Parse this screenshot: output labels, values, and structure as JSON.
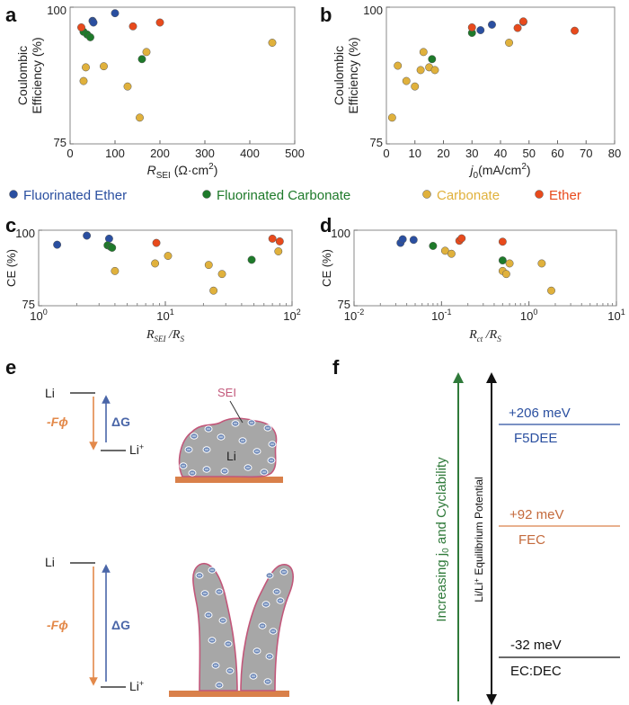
{
  "colors": {
    "fluorinated_ether": "#2a4fa0",
    "fluorinated_carbonate": "#1e7a2a",
    "carbonate": "#e0b13c",
    "ether": "#e84a1c",
    "electrode": "#d9804a",
    "lithium_fill": "#a7a7a7",
    "sei_outline": "#c2577a",
    "ion_fill": "#6d88b8",
    "neg_F_phi": "#e3894a",
    "delta_G": "#4a66a8",
    "green_arrow": "#2f7a3a"
  },
  "legend": [
    {
      "label": "Fluorinated Ether",
      "color_key": "fluorinated_ether"
    },
    {
      "label": "Fluorinated Carbonate",
      "color_key": "fluorinated_carbonate"
    },
    {
      "label": "Carbonate",
      "color_key": "carbonate"
    },
    {
      "label": "Ether",
      "color_key": "ether"
    }
  ],
  "chart_data": [
    {
      "panel": "a",
      "type": "scatter",
      "xlabel": "R",
      "xlabel_sub": "SEI",
      "xlabel_unit": " (Ω·cm",
      "xlabel_unit_end": ")",
      "xlabel_sup": "2",
      "ylabel_lines": [
        "Coulombic",
        "Efficiency (%)"
      ],
      "xlim": [
        0,
        500
      ],
      "ylim": [
        75,
        100
      ],
      "xticks": [
        0,
        100,
        200,
        300,
        400,
        500
      ],
      "ytick_labels": [
        {
          "v": 75,
          "t": "75"
        },
        {
          "v": 100,
          "t": "100"
        }
      ],
      "scale": "linear",
      "series": [
        {
          "color_key": "fluorinated_ether",
          "points": [
            [
              50,
              97.5
            ],
            [
              52,
              97.2
            ],
            [
              100,
              98.9
            ]
          ]
        },
        {
          "color_key": "fluorinated_carbonate",
          "points": [
            [
              30,
              95.5
            ],
            [
              38,
              95.0
            ],
            [
              45,
              94.5
            ],
            [
              160,
              90.5
            ]
          ]
        },
        {
          "color_key": "carbonate",
          "points": [
            [
              30,
              86.5
            ],
            [
              35,
              89.0
            ],
            [
              75,
              89.2
            ],
            [
              128,
              85.5
            ],
            [
              155,
              79.8
            ],
            [
              170,
              91.8
            ],
            [
              450,
              93.5
            ]
          ]
        },
        {
          "color_key": "ether",
          "points": [
            [
              25,
              96.3
            ],
            [
              140,
              96.5
            ],
            [
              200,
              97.2
            ]
          ]
        }
      ]
    },
    {
      "panel": "b",
      "type": "scatter",
      "xlabel": "j",
      "xlabel_sub": "0",
      "xlabel_unit": "(mA/cm",
      "xlabel_unit_end": ")",
      "xlabel_sup": "2",
      "ylabel_lines": [
        "Coulombic",
        "Efficiency (%)"
      ],
      "xlim": [
        0,
        80
      ],
      "ylim": [
        75,
        100
      ],
      "xticks": [
        0,
        10,
        20,
        30,
        40,
        50,
        60,
        70,
        80
      ],
      "ytick_labels": [
        {
          "v": 75,
          "t": "75"
        },
        {
          "v": 100,
          "t": "100"
        }
      ],
      "scale": "linear",
      "series": [
        {
          "color_key": "fluorinated_ether",
          "points": [
            [
              33,
              95.8
            ],
            [
              37,
              96.8
            ],
            [
              48,
              97.3
            ]
          ]
        },
        {
          "color_key": "fluorinated_carbonate",
          "points": [
            [
              16,
              90.5
            ],
            [
              30,
              95.3
            ]
          ]
        },
        {
          "color_key": "carbonate",
          "points": [
            [
              2,
              79.8
            ],
            [
              4,
              89.3
            ],
            [
              7,
              86.5
            ],
            [
              10,
              85.5
            ],
            [
              12,
              88.5
            ],
            [
              13,
              91.8
            ],
            [
              15,
              89.0
            ],
            [
              17,
              88.5
            ],
            [
              43,
              93.5
            ]
          ]
        },
        {
          "color_key": "ether",
          "points": [
            [
              30,
              96.3
            ],
            [
              46,
              96.2
            ],
            [
              48,
              97.4
            ],
            [
              66,
              95.7
            ]
          ]
        }
      ]
    },
    {
      "panel": "c",
      "type": "scatter",
      "xlabel_html": "R_SEI / R_S",
      "xlabel_main": "R",
      "xlabel_sub": "SEI",
      "xlabel_div": " /R",
      "xlabel_sub2": "S",
      "ylabel_lines": [
        "CE (%)"
      ],
      "xlim": [
        1,
        100
      ],
      "ylim": [
        75,
        100
      ],
      "scale": "log",
      "xtick_decades": [
        {
          "base": "10",
          "exp": "0",
          "v": 1
        },
        {
          "base": "10",
          "exp": "1",
          "v": 10
        },
        {
          "base": "10",
          "exp": "2",
          "v": 100
        }
      ],
      "ytick_labels": [
        {
          "v": 75,
          "t": "75"
        },
        {
          "v": 100,
          "t": "100"
        }
      ],
      "series": [
        {
          "color_key": "fluorinated_ether",
          "points": [
            [
              1.4,
              95.2
            ],
            [
              2.4,
              98.2
            ],
            [
              3.6,
              97.2
            ]
          ]
        },
        {
          "color_key": "fluorinated_carbonate",
          "points": [
            [
              3.5,
              95.0
            ],
            [
              3.7,
              94.5
            ],
            [
              3.8,
              94.2
            ],
            [
              48,
              90.2
            ]
          ]
        },
        {
          "color_key": "carbonate",
          "points": [
            [
              4.0,
              86.5
            ],
            [
              8.3,
              89.0
            ],
            [
              10.5,
              91.5
            ],
            [
              22,
              88.5
            ],
            [
              24,
              80.0
            ],
            [
              28,
              85.5
            ],
            [
              78,
              93.0
            ]
          ]
        },
        {
          "color_key": "ether",
          "points": [
            [
              8.5,
              95.8
            ],
            [
              70,
              97.2
            ],
            [
              80,
              96.3
            ]
          ]
        }
      ]
    },
    {
      "panel": "d",
      "type": "scatter",
      "xlabel_main": "R",
      "xlabel_sub": "ct",
      "xlabel_div": " /R",
      "xlabel_sub2": "S",
      "ylabel_lines": [
        "CE (%)"
      ],
      "xlim": [
        0.01,
        10
      ],
      "ylim": [
        75,
        100
      ],
      "scale": "log",
      "xtick_decades": [
        {
          "base": "10",
          "exp": "-2",
          "v": 0.01
        },
        {
          "base": "10",
          "exp": "-1",
          "v": 0.1
        },
        {
          "base": "10",
          "exp": "0",
          "v": 1
        },
        {
          "base": "10",
          "exp": "1",
          "v": 10
        }
      ],
      "ytick_labels": [
        {
          "v": 75,
          "t": "75"
        },
        {
          "v": 100,
          "t": "100"
        }
      ],
      "series": [
        {
          "color_key": "fluorinated_ether",
          "points": [
            [
              0.034,
              95.8
            ],
            [
              0.036,
              97.0
            ],
            [
              0.048,
              96.8
            ]
          ]
        },
        {
          "color_key": "fluorinated_carbonate",
          "points": [
            [
              0.08,
              94.8
            ],
            [
              0.5,
              90.0
            ]
          ]
        },
        {
          "color_key": "carbonate",
          "points": [
            [
              0.11,
              93.2
            ],
            [
              0.13,
              92.2
            ],
            [
              0.5,
              86.5
            ],
            [
              0.55,
              85.5
            ],
            [
              0.6,
              89.0
            ],
            [
              1.4,
              89.0
            ],
            [
              1.8,
              80.0
            ]
          ]
        },
        {
          "color_key": "ether",
          "points": [
            [
              0.16,
              96.5
            ],
            [
              0.17,
              97.3
            ],
            [
              0.5,
              96.2
            ]
          ]
        }
      ]
    }
  ],
  "panel_letters": {
    "a": "a",
    "b": "b",
    "c": "c",
    "d": "d",
    "e": "e",
    "f": "f"
  },
  "panel_e": {
    "li_label": "Li",
    "li_ion_base": "Li",
    "li_ion_sup": "+",
    "neg_F_phi": "-Fϕ",
    "delta_G": "ΔG",
    "sei_label": "SEI",
    "li_inside_label": "Li"
  },
  "panel_f": {
    "green_arrow_label": "Increasing j",
    "green_arrow_sub": "0",
    "green_arrow_label_end": " and Cyclability",
    "black_arrow_label": "Li/Li",
    "black_arrow_sup": "+",
    "black_arrow_label_end": " Equilibrium Potential",
    "levels": [
      {
        "value": "+206 meV",
        "name": "F5DEE",
        "color": "#2a4fa0"
      },
      {
        "value": "+92 meV",
        "name": "FEC",
        "color": "#c46a3c"
      },
      {
        "value": "-32 meV",
        "name": "EC:DEC",
        "color": "#111111"
      }
    ]
  }
}
